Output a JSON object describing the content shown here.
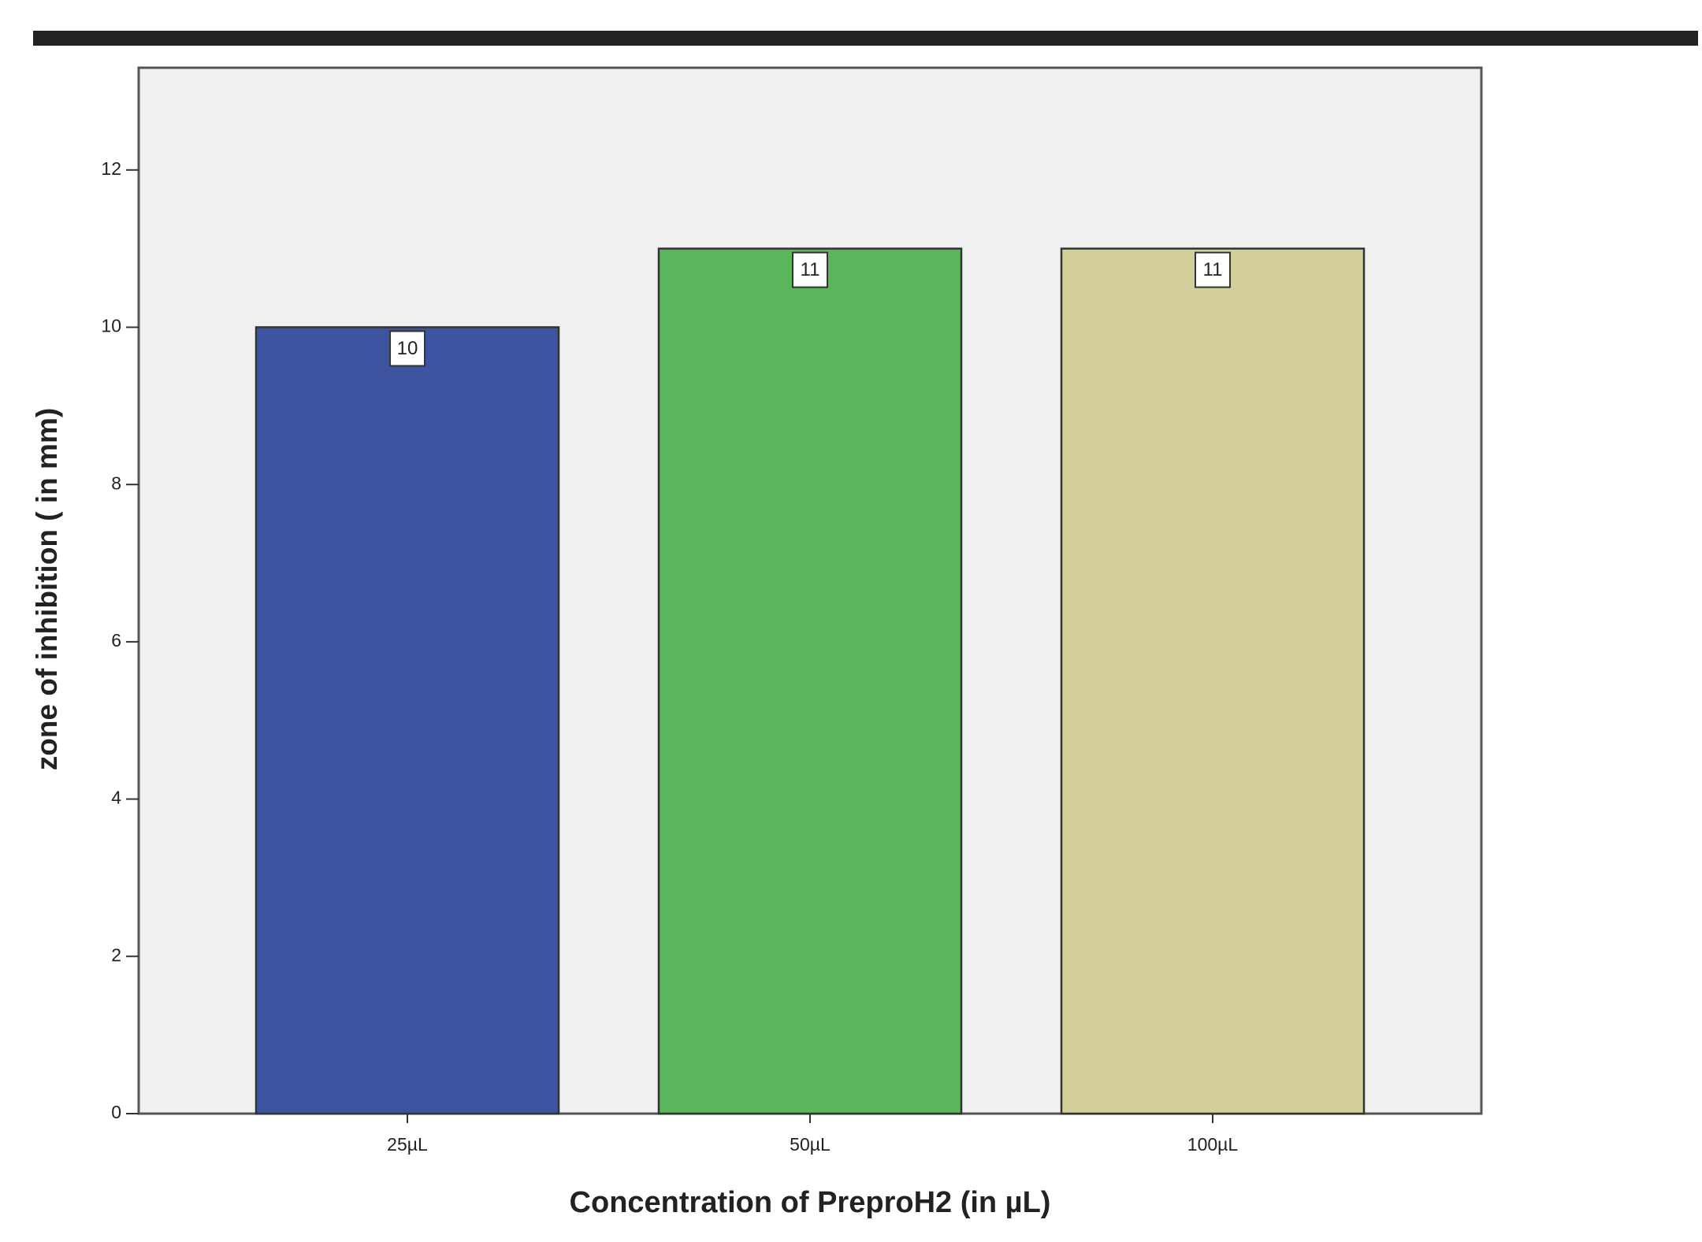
{
  "chart_data": {
    "type": "bar",
    "x_label": "Concentration of PreproH2 (in µL)",
    "y_label": "zone of inhibition ( in mm)",
    "categories": [
      "25µL",
      "50µL",
      "100µL"
    ],
    "values": [
      10,
      11,
      11
    ],
    "colors": [
      "#3f54a0",
      "#5bb55a",
      "#d3cf9a"
    ],
    "ylim": [
      0,
      13.3
    ],
    "yticks": [
      0,
      2,
      4,
      6,
      8,
      10,
      12
    ],
    "data_labels": true
  }
}
